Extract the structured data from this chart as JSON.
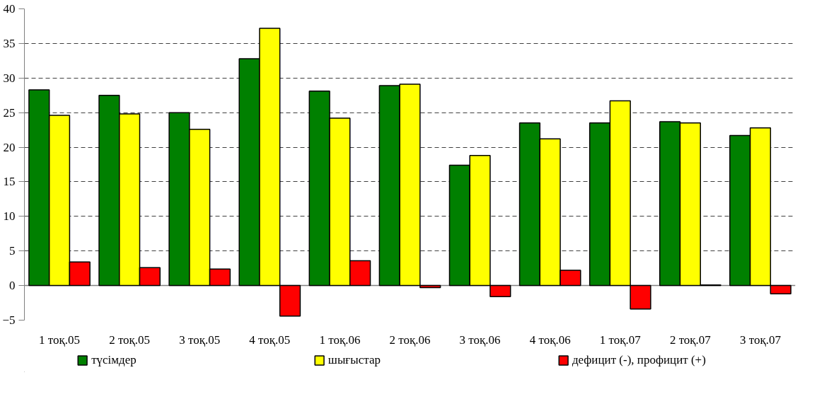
{
  "chart_data": {
    "type": "bar",
    "categories": [
      "1 тоқ.05",
      "2 тоқ.05",
      "3 тоқ.05",
      "4 тоқ.05",
      "1 тоқ.06",
      "2 тоқ.06",
      "3 тоқ.06",
      "4 тоқ.06",
      "1 тоқ.07",
      "2 тоқ.07",
      "3 тоқ.07"
    ],
    "series": [
      {
        "name": "түсімдер",
        "color": "#008000",
        "values": [
          28.3,
          27.5,
          25.0,
          32.8,
          28.1,
          28.9,
          17.4,
          23.5,
          23.5,
          23.7,
          21.7
        ]
      },
      {
        "name": "шығыстар",
        "color": "#ffff00",
        "values": [
          24.6,
          24.8,
          22.6,
          37.2,
          24.2,
          29.1,
          18.8,
          21.2,
          26.7,
          23.5,
          22.8
        ]
      },
      {
        "name": "дефицит (-), профицит (+)",
        "color": "#ff0000",
        "values": [
          3.4,
          2.6,
          2.4,
          -4.4,
          3.6,
          -0.3,
          -1.6,
          2.2,
          -3.4,
          0.1,
          -1.2
        ]
      }
    ],
    "ylim": [
      -5,
      40
    ],
    "yticks": [
      -5,
      0,
      5,
      10,
      15,
      20,
      25,
      30,
      35,
      40
    ],
    "grid": "y",
    "legend": "bottom"
  }
}
